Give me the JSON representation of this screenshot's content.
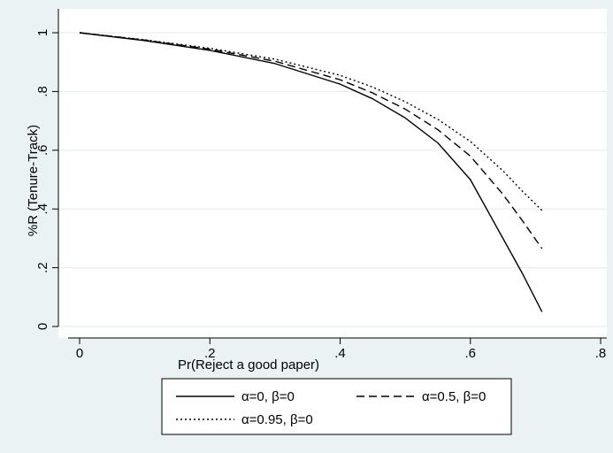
{
  "chart_data": {
    "type": "line",
    "title": "",
    "xlabel": "Pr(Reject a good paper)",
    "ylabel": "%R (Tenure-Track)",
    "xlim": [
      0,
      0.8
    ],
    "ylim": [
      0,
      1
    ],
    "xticks": [
      {
        "value": 0,
        "label": "0"
      },
      {
        "value": 0.2,
        "label": ".2"
      },
      {
        "value": 0.4,
        "label": ".4"
      },
      {
        "value": 0.6,
        "label": ".6"
      },
      {
        "value": 0.8,
        "label": ".8"
      }
    ],
    "yticks": [
      {
        "value": 0,
        "label": "0"
      },
      {
        "value": 0.2,
        "label": ".2"
      },
      {
        "value": 0.4,
        "label": ".4"
      },
      {
        "value": 0.6,
        "label": ".6"
      },
      {
        "value": 0.8,
        "label": ".8"
      },
      {
        "value": 1,
        "label": "1"
      }
    ],
    "grid": "horizontal",
    "legend_position": "bottom",
    "x": [
      0,
      0.1,
      0.2,
      0.3,
      0.4,
      0.45,
      0.5,
      0.55,
      0.6,
      0.65,
      0.68,
      0.71
    ],
    "series": [
      {
        "name": "α=0, β=0",
        "style": "solid",
        "values": [
          1.0,
          0.973,
          0.94,
          0.895,
          0.825,
          0.775,
          0.71,
          0.625,
          0.5,
          0.3,
          0.18,
          0.05
        ]
      },
      {
        "name": "α=0.5, β=0",
        "style": "dashed",
        "values": [
          1.0,
          0.975,
          0.944,
          0.903,
          0.84,
          0.795,
          0.74,
          0.67,
          0.58,
          0.45,
          0.36,
          0.265
        ]
      },
      {
        "name": "α=0.95, β=0",
        "style": "dotted",
        "values": [
          1.0,
          0.976,
          0.947,
          0.91,
          0.855,
          0.815,
          0.765,
          0.705,
          0.63,
          0.53,
          0.46,
          0.395
        ]
      }
    ]
  }
}
